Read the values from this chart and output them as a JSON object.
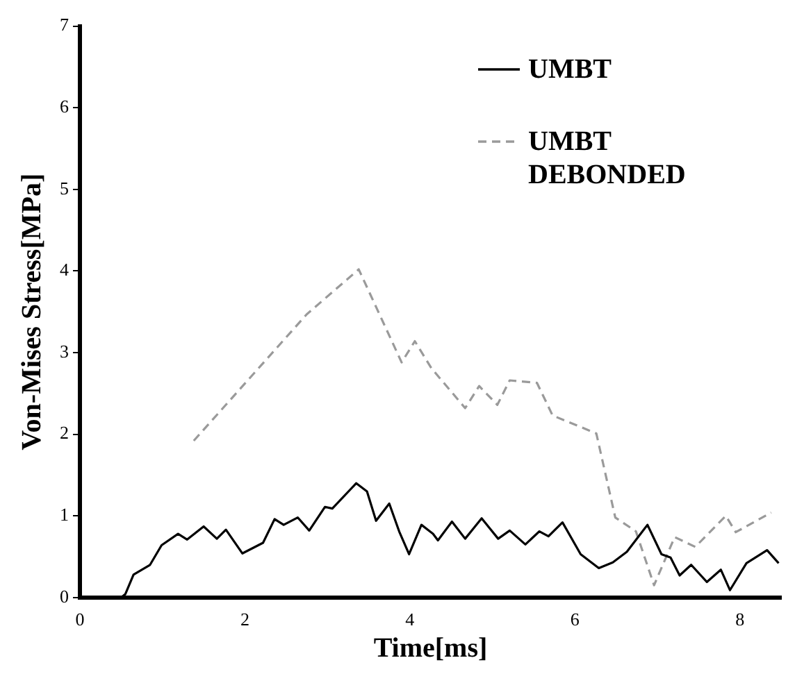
{
  "chart_data": {
    "type": "line",
    "xlabel": "Time[ms]",
    "ylabel": "Von-Mises Stress[MPa]",
    "xlim": [
      0,
      8.5
    ],
    "xticks": [
      0,
      2,
      4,
      6,
      8
    ],
    "ylim": [
      0,
      7
    ],
    "yticks": [
      0,
      1,
      2,
      3,
      4,
      5,
      6,
      7
    ],
    "legend": "top right",
    "marker": "none",
    "series": [
      {
        "name": "UMBT",
        "color": "#000000",
        "line_style": "solid",
        "x": [
          0,
          0.5,
          0.55,
          0.65,
          0.85,
          0.99,
          1.19,
          1.3,
          1.5,
          1.66,
          1.77,
          1.97,
          2.22,
          2.36,
          2.47,
          2.64,
          2.78,
          2.97,
          3.06,
          3.35,
          3.48,
          3.59,
          3.75,
          3.87,
          3.99,
          4.14,
          4.28,
          4.34,
          4.51,
          4.67,
          4.87,
          5.07,
          5.21,
          5.4,
          5.57,
          5.68,
          5.85,
          6.07,
          6.29,
          6.46,
          6.63,
          6.88,
          7.05,
          7.16,
          7.27,
          7.41,
          7.6,
          7.77,
          7.88,
          8.08,
          8.33,
          8.47
        ],
        "values": [
          0,
          0,
          0.04,
          0.28,
          0.4,
          0.64,
          0.78,
          0.71,
          0.87,
          0.72,
          0.83,
          0.54,
          0.67,
          0.96,
          0.89,
          0.98,
          0.82,
          1.11,
          1.09,
          1.4,
          1.3,
          0.94,
          1.15,
          0.81,
          0.53,
          0.89,
          0.78,
          0.7,
          0.93,
          0.72,
          0.97,
          0.72,
          0.82,
          0.65,
          0.81,
          0.75,
          0.92,
          0.53,
          0.36,
          0.43,
          0.56,
          0.89,
          0.53,
          0.49,
          0.27,
          0.4,
          0.19,
          0.34,
          0.09,
          0.42,
          0.58,
          0.42
        ]
      },
      {
        "name": "UMBT DEBONDED",
        "color": "#9a9a9a",
        "line_style": "dashed",
        "x": [
          1.38,
          2.75,
          3.38,
          3.9,
          4.06,
          4.26,
          4.67,
          4.84,
          5.06,
          5.21,
          5.54,
          5.73,
          6.26,
          6.49,
          6.74,
          6.96,
          7.21,
          7.46,
          7.83,
          7.95,
          8.38
        ],
        "values": [
          1.92,
          3.47,
          4.02,
          2.88,
          3.14,
          2.81,
          2.32,
          2.59,
          2.36,
          2.66,
          2.63,
          2.23,
          2.01,
          0.98,
          0.81,
          0.15,
          0.74,
          0.62,
          1.0,
          0.8,
          1.04
        ]
      }
    ]
  }
}
